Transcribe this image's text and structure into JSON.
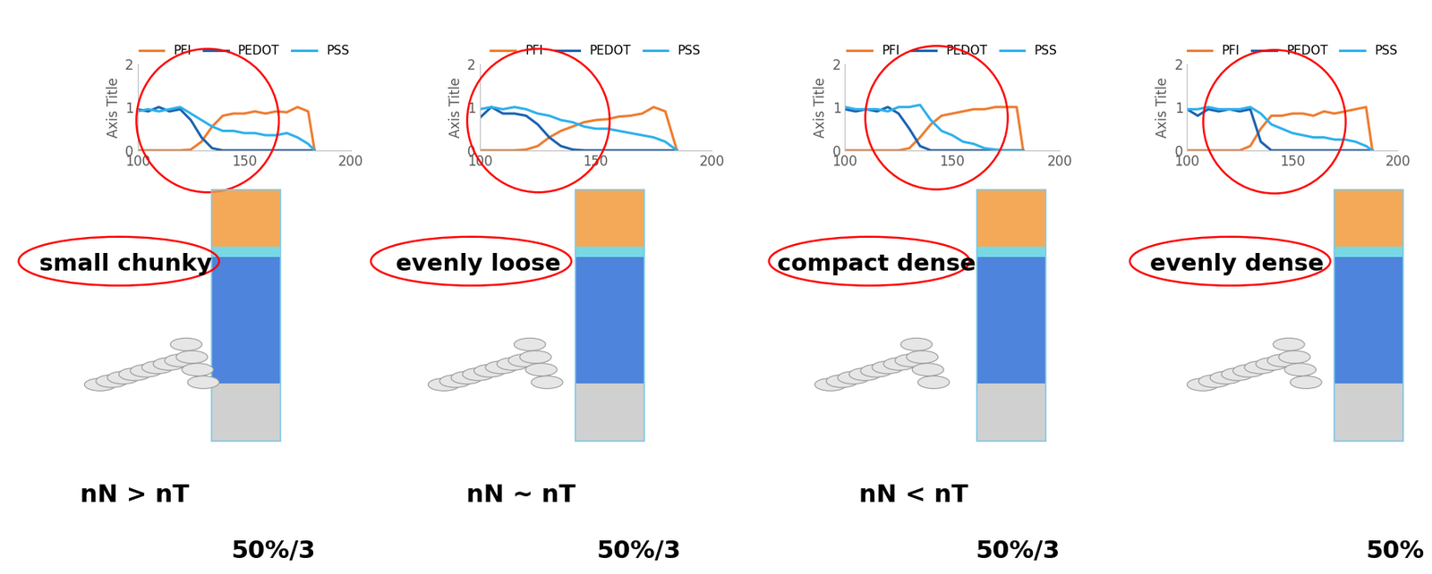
{
  "chart_data": [
    {
      "type": "line",
      "ylabel": "Axis Title",
      "legend": "top",
      "xlim": [
        100,
        200
      ],
      "xticks": [
        100,
        150,
        200
      ],
      "ylim": [
        0,
        2
      ],
      "yticks": [
        0,
        1,
        2
      ],
      "x": [
        100,
        105,
        110,
        115,
        120,
        125,
        130,
        135,
        140,
        145,
        150,
        155,
        160,
        165,
        170,
        175,
        180,
        183
      ],
      "series": [
        {
          "name": "PFI",
          "color": "#ED7D31",
          "values": [
            0,
            0,
            0,
            0,
            0,
            0.02,
            0.2,
            0.55,
            0.8,
            0.85,
            0.85,
            0.9,
            0.85,
            0.9,
            0.88,
            1.0,
            0.9,
            0
          ]
        },
        {
          "name": "PEDOT",
          "color": "#1B63B0",
          "values": [
            0.95,
            0.9,
            1.0,
            0.9,
            0.95,
            0.7,
            0.3,
            0.05,
            0,
            0,
            0,
            0,
            0,
            0,
            0,
            0,
            0,
            0
          ]
        },
        {
          "name": "PSS",
          "color": "#2EB0EC",
          "values": [
            0.9,
            0.95,
            0.9,
            0.95,
            1.0,
            0.85,
            0.7,
            0.55,
            0.45,
            0.45,
            0.4,
            0.4,
            0.35,
            0.35,
            0.4,
            0.3,
            0.15,
            0
          ]
        }
      ],
      "annotations": [
        "small chunky",
        "nN > nT",
        "50%/3"
      ]
    },
    {
      "type": "line",
      "ylabel": "Axis Title",
      "legend": "top",
      "xlim": [
        100,
        200
      ],
      "xticks": [
        100,
        150,
        200
      ],
      "ylim": [
        0,
        2
      ],
      "yticks": [
        0,
        1,
        2
      ],
      "x": [
        100,
        105,
        110,
        115,
        120,
        125,
        130,
        135,
        140,
        145,
        150,
        155,
        160,
        165,
        170,
        175,
        180,
        185
      ],
      "series": [
        {
          "name": "PFI",
          "color": "#ED7D31",
          "values": [
            0,
            0,
            0,
            0,
            0.02,
            0.1,
            0.3,
            0.45,
            0.55,
            0.65,
            0.7,
            0.72,
            0.78,
            0.8,
            0.85,
            1.0,
            0.9,
            0
          ]
        },
        {
          "name": "PEDOT",
          "color": "#1B63B0",
          "values": [
            0.75,
            1.0,
            0.85,
            0.85,
            0.8,
            0.6,
            0.3,
            0.1,
            0.02,
            0,
            0,
            0,
            0,
            0,
            0,
            0,
            0,
            0
          ]
        },
        {
          "name": "PSS",
          "color": "#2EB0EC",
          "values": [
            0.95,
            1.0,
            0.95,
            1.0,
            0.95,
            0.85,
            0.8,
            0.7,
            0.65,
            0.55,
            0.5,
            0.5,
            0.45,
            0.4,
            0.35,
            0.3,
            0.2,
            0
          ]
        }
      ],
      "annotations": [
        "evenly loose",
        "nN ~ nT",
        "50%/3"
      ]
    },
    {
      "type": "line",
      "ylabel": "Axis Title",
      "legend": "top",
      "xlim": [
        100,
        200
      ],
      "xticks": [
        100,
        150,
        200
      ],
      "ylim": [
        0,
        2
      ],
      "yticks": [
        0,
        1,
        2
      ],
      "x": [
        100,
        105,
        110,
        115,
        120,
        125,
        130,
        135,
        140,
        145,
        150,
        155,
        160,
        165,
        170,
        175,
        180,
        183
      ],
      "series": [
        {
          "name": "PFI",
          "color": "#ED7D31",
          "values": [
            0,
            0,
            0,
            0,
            0,
            0,
            0.05,
            0.3,
            0.6,
            0.8,
            0.85,
            0.9,
            0.95,
            0.95,
            1.0,
            1.0,
            1.0,
            0
          ]
        },
        {
          "name": "PEDOT",
          "color": "#1B63B0",
          "values": [
            0.95,
            0.9,
            0.95,
            0.9,
            1.0,
            0.85,
            0.5,
            0.1,
            0,
            0,
            0,
            0,
            0,
            0,
            0,
            0,
            0,
            0
          ]
        },
        {
          "name": "PSS",
          "color": "#2EB0EC",
          "values": [
            1.0,
            0.95,
            0.95,
            0.95,
            0.9,
            1.0,
            1.0,
            1.05,
            0.7,
            0.45,
            0.35,
            0.2,
            0.15,
            0.05,
            0.02,
            0,
            0,
            0
          ]
        }
      ],
      "annotations": [
        "compact dense",
        "nN < nT",
        "50%/3"
      ]
    },
    {
      "type": "line",
      "ylabel": "Axis Title",
      "legend": "top",
      "xlim": [
        100,
        200
      ],
      "xticks": [
        100,
        150,
        200
      ],
      "ylim": [
        0,
        2
      ],
      "yticks": [
        0,
        1,
        2
      ],
      "x": [
        100,
        105,
        110,
        115,
        120,
        125,
        130,
        135,
        140,
        145,
        150,
        155,
        160,
        165,
        170,
        175,
        180,
        185,
        188
      ],
      "series": [
        {
          "name": "PFI",
          "color": "#ED7D31",
          "values": [
            0,
            0,
            0,
            0,
            0,
            0,
            0.1,
            0.5,
            0.8,
            0.8,
            0.85,
            0.85,
            0.8,
            0.9,
            0.85,
            0.9,
            0.95,
            1.0,
            0
          ]
        },
        {
          "name": "PEDOT",
          "color": "#1B63B0",
          "values": [
            0.95,
            0.8,
            0.95,
            0.9,
            0.95,
            0.9,
            0.95,
            0.2,
            0,
            0,
            0,
            0,
            0,
            0,
            0,
            0,
            0,
            0,
            0
          ]
        },
        {
          "name": "PSS",
          "color": "#2EB0EC",
          "values": [
            0.95,
            0.95,
            1.0,
            0.95,
            0.95,
            0.95,
            1.0,
            0.85,
            0.6,
            0.5,
            0.4,
            0.35,
            0.3,
            0.3,
            0.25,
            0.25,
            0.2,
            0.1,
            0
          ]
        }
      ],
      "annotations": [
        "evenly dense",
        "50%"
      ]
    }
  ]
}
